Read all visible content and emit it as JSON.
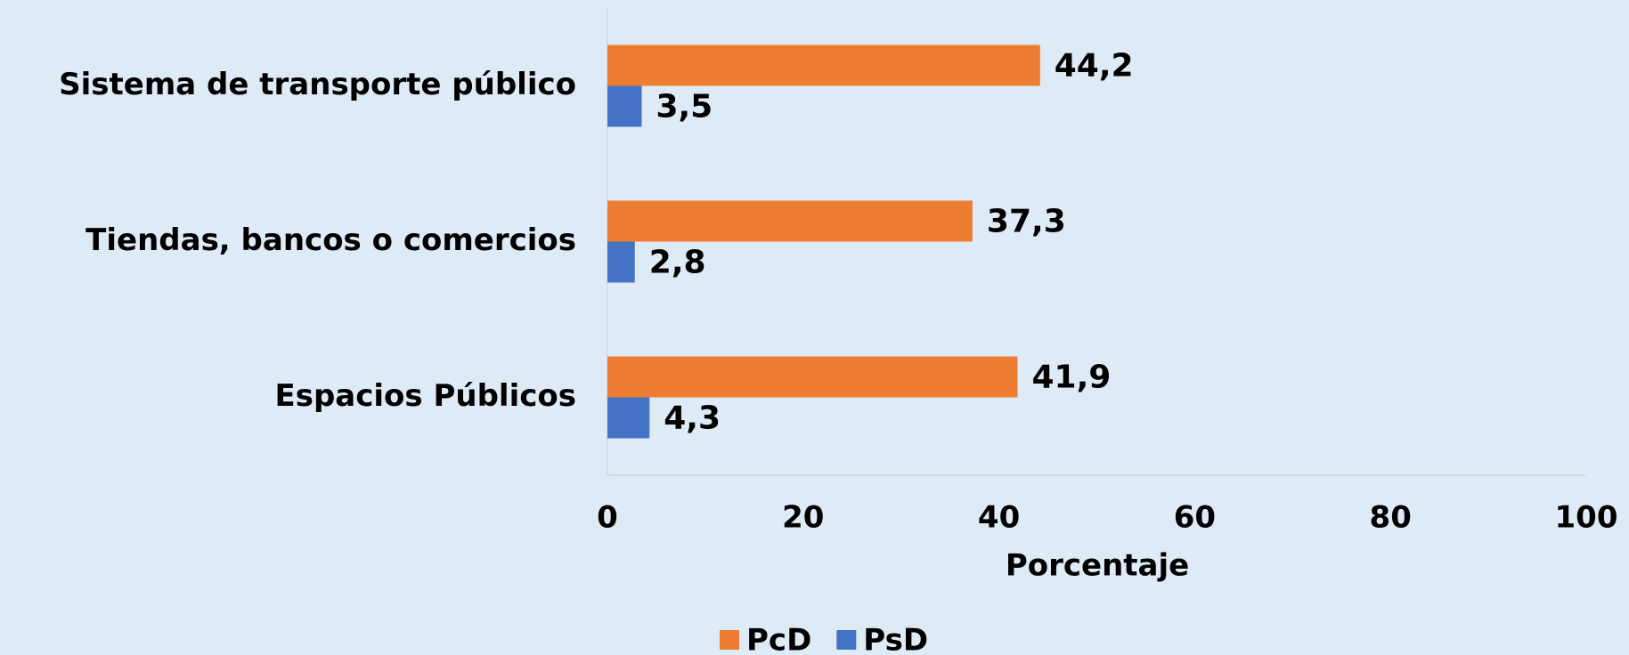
{
  "chart_data": {
    "type": "hbar",
    "categories": [
      "Sistema de transporte público",
      "Tiendas, bancos o comercios",
      "Espacios Públicos"
    ],
    "series": [
      {
        "name": "PcD",
        "color": "#ED7D31",
        "values": [
          44.2,
          37.3,
          41.9
        ],
        "value_labels": [
          "44,2",
          "37,3",
          "41,9"
        ]
      },
      {
        "name": "PsD",
        "color": "#4472C4",
        "values": [
          3.5,
          2.8,
          4.3
        ],
        "value_labels": [
          "3,5",
          "2,8",
          "4,3"
        ]
      }
    ],
    "xlabel": "Porcentaje",
    "xlim": [
      0,
      100
    ],
    "xticks": [
      0,
      20,
      40,
      60,
      80,
      100
    ],
    "grid": false,
    "legend": "bottom"
  }
}
